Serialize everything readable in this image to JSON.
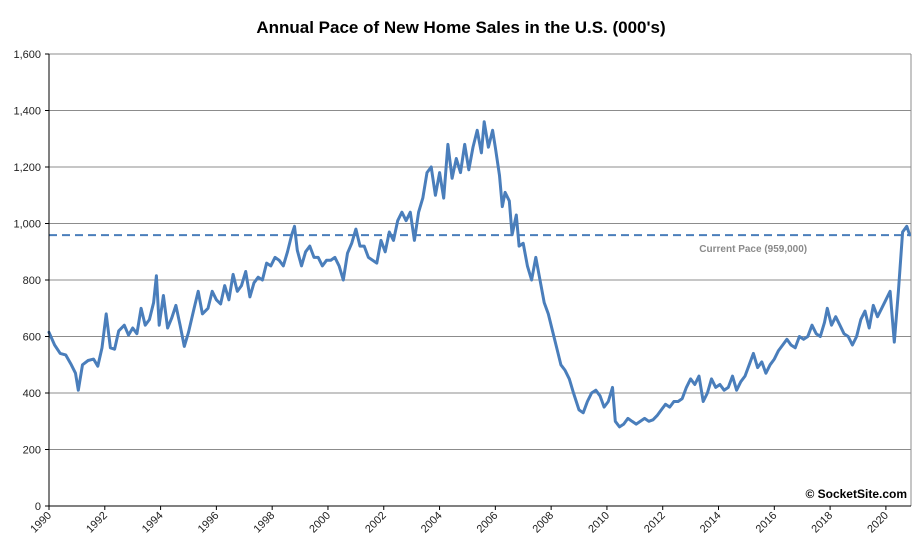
{
  "chart_data": {
    "type": "line",
    "title": "Annual Pace of New Home Sales in the U.S. (000's)",
    "xlabel": "",
    "ylabel": "",
    "xlim": [
      1990,
      2020.9
    ],
    "ylim": [
      0,
      1600
    ],
    "y_ticks": [
      0,
      200,
      400,
      600,
      800,
      1000,
      1200,
      1400,
      1600
    ],
    "y_tick_labels": [
      "0",
      "200",
      "400",
      "600",
      "800",
      "1,000",
      "1,200",
      "1,400",
      "1,600"
    ],
    "x_ticks": [
      1990,
      1992,
      1994,
      1996,
      1998,
      2000,
      2002,
      2004,
      2006,
      2008,
      2010,
      2012,
      2014,
      2016,
      2018,
      2020
    ],
    "x_tick_labels": [
      "1990",
      "1992",
      "1994",
      "1996",
      "1998",
      "2000",
      "2002",
      "2004",
      "2006",
      "2008",
      "2010",
      "2012",
      "2014",
      "2016",
      "2018",
      "2020"
    ],
    "grid": true,
    "series": [
      {
        "color": "#4a7ebb",
        "points": [
          [
            1990.0,
            615
          ],
          [
            1990.2,
            570
          ],
          [
            1990.4,
            540
          ],
          [
            1990.6,
            535
          ],
          [
            1990.8,
            500
          ],
          [
            1990.95,
            470
          ],
          [
            1991.05,
            410
          ],
          [
            1991.2,
            500
          ],
          [
            1991.4,
            515
          ],
          [
            1991.6,
            520
          ],
          [
            1991.75,
            495
          ],
          [
            1991.9,
            560
          ],
          [
            1992.05,
            680
          ],
          [
            1992.2,
            560
          ],
          [
            1992.35,
            555
          ],
          [
            1992.5,
            620
          ],
          [
            1992.7,
            640
          ],
          [
            1992.85,
            605
          ],
          [
            1993.0,
            630
          ],
          [
            1993.15,
            610
          ],
          [
            1993.3,
            700
          ],
          [
            1993.45,
            640
          ],
          [
            1993.6,
            660
          ],
          [
            1993.75,
            720
          ],
          [
            1993.85,
            815
          ],
          [
            1993.95,
            640
          ],
          [
            1994.1,
            745
          ],
          [
            1994.25,
            630
          ],
          [
            1994.4,
            665
          ],
          [
            1994.55,
            710
          ],
          [
            1994.7,
            640
          ],
          [
            1994.85,
            565
          ],
          [
            1995.0,
            615
          ],
          [
            1995.2,
            700
          ],
          [
            1995.35,
            760
          ],
          [
            1995.5,
            680
          ],
          [
            1995.7,
            700
          ],
          [
            1995.85,
            760
          ],
          [
            1996.0,
            730
          ],
          [
            1996.15,
            715
          ],
          [
            1996.3,
            780
          ],
          [
            1996.45,
            730
          ],
          [
            1996.6,
            820
          ],
          [
            1996.75,
            760
          ],
          [
            1996.9,
            780
          ],
          [
            1997.05,
            830
          ],
          [
            1997.2,
            740
          ],
          [
            1997.35,
            790
          ],
          [
            1997.5,
            810
          ],
          [
            1997.65,
            800
          ],
          [
            1997.8,
            860
          ],
          [
            1997.95,
            850
          ],
          [
            1998.1,
            880
          ],
          [
            1998.25,
            870
          ],
          [
            1998.4,
            850
          ],
          [
            1998.55,
            900
          ],
          [
            1998.7,
            960
          ],
          [
            1998.8,
            990
          ],
          [
            1998.9,
            905
          ],
          [
            1999.05,
            850
          ],
          [
            1999.2,
            900
          ],
          [
            1999.35,
            920
          ],
          [
            1999.5,
            880
          ],
          [
            1999.65,
            880
          ],
          [
            1999.8,
            850
          ],
          [
            1999.95,
            870
          ],
          [
            2000.1,
            870
          ],
          [
            2000.25,
            880
          ],
          [
            2000.4,
            850
          ],
          [
            2000.55,
            800
          ],
          [
            2000.7,
            895
          ],
          [
            2000.85,
            930
          ],
          [
            2001.0,
            980
          ],
          [
            2001.15,
            920
          ],
          [
            2001.3,
            920
          ],
          [
            2001.45,
            880
          ],
          [
            2001.6,
            870
          ],
          [
            2001.75,
            860
          ],
          [
            2001.9,
            940
          ],
          [
            2002.05,
            900
          ],
          [
            2002.2,
            970
          ],
          [
            2002.35,
            940
          ],
          [
            2002.5,
            1010
          ],
          [
            2002.65,
            1040
          ],
          [
            2002.8,
            1010
          ],
          [
            2002.95,
            1040
          ],
          [
            2003.1,
            940
          ],
          [
            2003.25,
            1040
          ],
          [
            2003.4,
            1090
          ],
          [
            2003.55,
            1180
          ],
          [
            2003.7,
            1200
          ],
          [
            2003.85,
            1100
          ],
          [
            2004.0,
            1180
          ],
          [
            2004.15,
            1090
          ],
          [
            2004.3,
            1280
          ],
          [
            2004.45,
            1160
          ],
          [
            2004.6,
            1230
          ],
          [
            2004.75,
            1180
          ],
          [
            2004.9,
            1280
          ],
          [
            2005.05,
            1190
          ],
          [
            2005.2,
            1270
          ],
          [
            2005.35,
            1330
          ],
          [
            2005.5,
            1250
          ],
          [
            2005.6,
            1360
          ],
          [
            2005.75,
            1270
          ],
          [
            2005.9,
            1330
          ],
          [
            2006.0,
            1270
          ],
          [
            2006.15,
            1170
          ],
          [
            2006.25,
            1060
          ],
          [
            2006.35,
            1110
          ],
          [
            2006.5,
            1080
          ],
          [
            2006.6,
            960
          ],
          [
            2006.75,
            1030
          ],
          [
            2006.85,
            920
          ],
          [
            2007.0,
            930
          ],
          [
            2007.15,
            850
          ],
          [
            2007.3,
            800
          ],
          [
            2007.45,
            880
          ],
          [
            2007.6,
            800
          ],
          [
            2007.75,
            720
          ],
          [
            2007.9,
            680
          ],
          [
            2008.05,
            620
          ],
          [
            2008.2,
            560
          ],
          [
            2008.35,
            500
          ],
          [
            2008.5,
            480
          ],
          [
            2008.65,
            450
          ],
          [
            2008.8,
            400
          ],
          [
            2009.0,
            340
          ],
          [
            2009.15,
            330
          ],
          [
            2009.3,
            370
          ],
          [
            2009.45,
            400
          ],
          [
            2009.6,
            410
          ],
          [
            2009.75,
            390
          ],
          [
            2009.9,
            350
          ],
          [
            2010.05,
            370
          ],
          [
            2010.2,
            420
          ],
          [
            2010.3,
            300
          ],
          [
            2010.45,
            280
          ],
          [
            2010.6,
            290
          ],
          [
            2010.75,
            310
          ],
          [
            2010.9,
            300
          ],
          [
            2011.05,
            290
          ],
          [
            2011.2,
            300
          ],
          [
            2011.35,
            310
          ],
          [
            2011.5,
            300
          ],
          [
            2011.65,
            305
          ],
          [
            2011.8,
            320
          ],
          [
            2011.95,
            340
          ],
          [
            2012.1,
            360
          ],
          [
            2012.25,
            350
          ],
          [
            2012.4,
            370
          ],
          [
            2012.55,
            370
          ],
          [
            2012.7,
            380
          ],
          [
            2012.85,
            420
          ],
          [
            2013.0,
            450
          ],
          [
            2013.15,
            430
          ],
          [
            2013.3,
            460
          ],
          [
            2013.45,
            370
          ],
          [
            2013.6,
            400
          ],
          [
            2013.75,
            450
          ],
          [
            2013.9,
            420
          ],
          [
            2014.05,
            430
          ],
          [
            2014.2,
            410
          ],
          [
            2014.35,
            420
          ],
          [
            2014.5,
            460
          ],
          [
            2014.65,
            410
          ],
          [
            2014.8,
            440
          ],
          [
            2014.95,
            460
          ],
          [
            2015.1,
            500
          ],
          [
            2015.25,
            540
          ],
          [
            2015.4,
            490
          ],
          [
            2015.55,
            510
          ],
          [
            2015.7,
            470
          ],
          [
            2015.85,
            500
          ],
          [
            2016.0,
            520
          ],
          [
            2016.15,
            550
          ],
          [
            2016.3,
            570
          ],
          [
            2016.45,
            590
          ],
          [
            2016.6,
            570
          ],
          [
            2016.75,
            560
          ],
          [
            2016.9,
            600
          ],
          [
            2017.05,
            590
          ],
          [
            2017.2,
            600
          ],
          [
            2017.35,
            640
          ],
          [
            2017.5,
            610
          ],
          [
            2017.65,
            600
          ],
          [
            2017.8,
            650
          ],
          [
            2017.9,
            700
          ],
          [
            2018.05,
            640
          ],
          [
            2018.2,
            670
          ],
          [
            2018.35,
            640
          ],
          [
            2018.5,
            610
          ],
          [
            2018.65,
            600
          ],
          [
            2018.8,
            570
          ],
          [
            2018.95,
            600
          ],
          [
            2019.1,
            660
          ],
          [
            2019.25,
            690
          ],
          [
            2019.4,
            630
          ],
          [
            2019.55,
            710
          ],
          [
            2019.7,
            670
          ],
          [
            2019.85,
            700
          ],
          [
            2020.0,
            730
          ],
          [
            2020.15,
            760
          ],
          [
            2020.3,
            580
          ],
          [
            2020.45,
            760
          ],
          [
            2020.6,
            970
          ],
          [
            2020.75,
            990
          ],
          [
            2020.85,
            960
          ]
        ]
      }
    ],
    "reference_line": {
      "y": 959,
      "color": "#4a7ebb",
      "style": "dashed"
    },
    "annotations": [
      {
        "text": "Current Pace (959,000)",
        "x": 2016,
        "y": 959
      }
    ],
    "credit": "© SocketSite.com",
    "colors": {
      "line": "#4a7ebb",
      "grid": "#8c8c8c",
      "axis": "#000000",
      "annotation": "#8a8a8a"
    }
  }
}
